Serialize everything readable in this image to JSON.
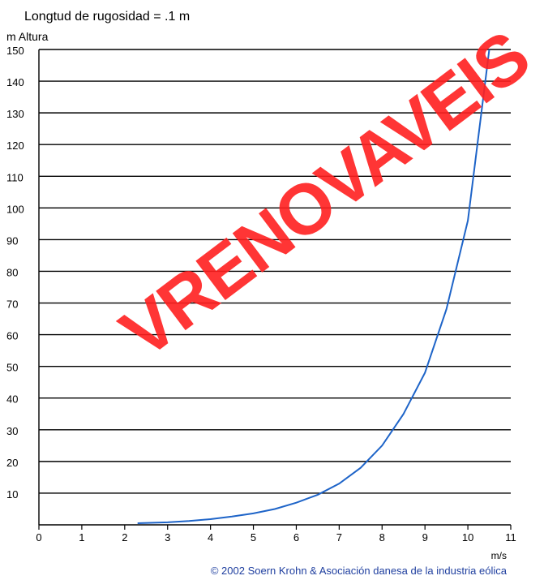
{
  "chart_data": {
    "type": "line",
    "subtitle": "Longtud de rugosidad = .1 m",
    "ylabel": "m Altura",
    "xlabel": "m/s",
    "xlim": [
      0,
      11
    ],
    "ylim": [
      0,
      150
    ],
    "x_ticks": [
      "0",
      "1",
      "2",
      "3",
      "4",
      "5",
      "6",
      "7",
      "8",
      "9",
      "10",
      "11"
    ],
    "y_ticks": [
      "10",
      "20",
      "30",
      "40",
      "50",
      "60",
      "70",
      "80",
      "90",
      "100",
      "110",
      "120",
      "130",
      "140",
      "150"
    ],
    "grid": "horizontal",
    "series": [
      {
        "color": "#1e64c8",
        "points": [
          [
            2.3,
            0.5
          ],
          [
            3,
            0.8
          ],
          [
            3.5,
            1.2
          ],
          [
            4,
            1.8
          ],
          [
            4.5,
            2.6
          ],
          [
            5,
            3.6
          ],
          [
            5.5,
            5
          ],
          [
            6,
            7
          ],
          [
            6.5,
            9.5
          ],
          [
            7,
            13
          ],
          [
            7.5,
            18
          ],
          [
            8,
            25
          ],
          [
            8.5,
            35
          ],
          [
            9,
            48
          ],
          [
            9.5,
            68
          ],
          [
            10,
            96
          ],
          [
            10.5,
            150
          ]
        ]
      }
    ]
  },
  "watermark": "VRENOVAVEIS",
  "copyright": "© 2002 Soern Krohn & Asociación danesa de la industria eólica"
}
